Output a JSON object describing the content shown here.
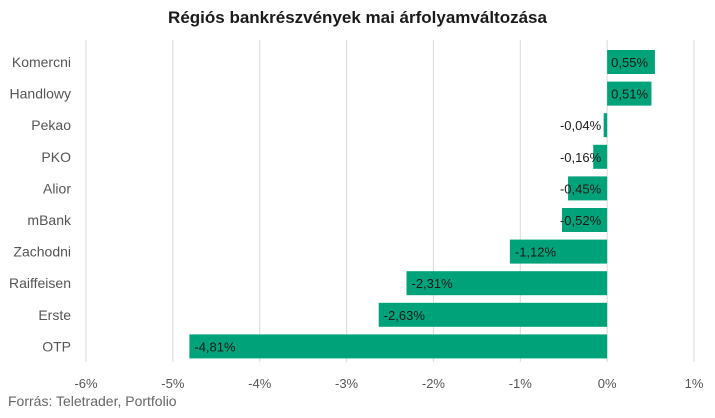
{
  "chart_data": {
    "type": "bar",
    "orientation": "horizontal",
    "title": "Régiós bankrészvények mai árfolyamváltozása",
    "categories": [
      "Komercni",
      "Handlowy",
      "Pekao",
      "PKO",
      "Alior",
      "mBank",
      "Zachodni",
      "Raiffeisen",
      "Erste",
      "OTP"
    ],
    "values": [
      0.55,
      0.51,
      -0.04,
      -0.16,
      -0.45,
      -0.52,
      -1.12,
      -2.31,
      -2.63,
      -4.81
    ],
    "value_labels": [
      "0,55%",
      "0,51%",
      "-0,04%",
      "-0,16%",
      "-0,45%",
      "-0,52%",
      "-1,12%",
      "-2,31%",
      "-2,63%",
      "-4,81%"
    ],
    "xlim": [
      -6,
      1
    ],
    "x_ticks": [
      -6,
      -5,
      -4,
      -3,
      -2,
      -1,
      0,
      1
    ],
    "x_tick_labels": [
      "-6%",
      "-5%",
      "-4%",
      "-3%",
      "-2%",
      "-1%",
      "0%",
      "1%"
    ],
    "bar_color": "#00a27a",
    "grid": true
  },
  "source": "Forrás: Teletrader, Portfolio"
}
